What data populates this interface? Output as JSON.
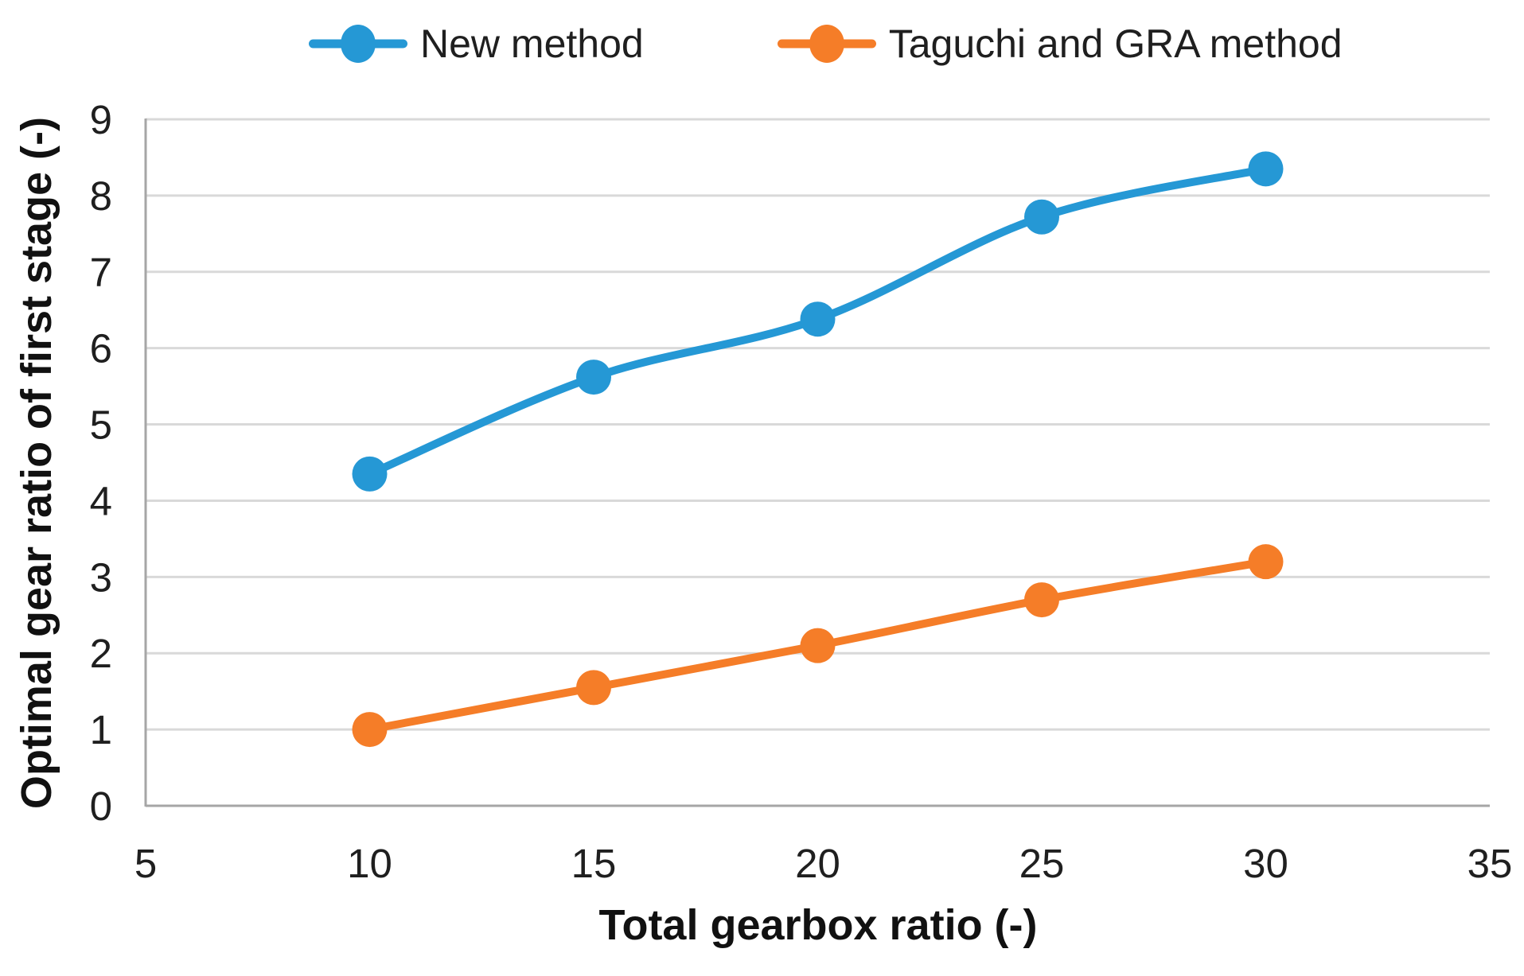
{
  "colors": {
    "series_blue": "#2598d5",
    "series_orange": "#f57d28",
    "gridline": "#d9d9d9",
    "axis_line": "#a6a6a6",
    "text": "#1f1f1f"
  },
  "legend": {
    "position": "top",
    "items": [
      {
        "label": "New method",
        "color": "#2598d5",
        "marker": "line-with-circle"
      },
      {
        "label": "Taguchi and GRA method",
        "color": "#f57d28",
        "marker": "line-with-circle"
      }
    ]
  },
  "chart_data": {
    "type": "line",
    "x": [
      10,
      15,
      20,
      25,
      30
    ],
    "series": [
      {
        "name": "New method",
        "color": "#2598d5",
        "values": [
          4.35,
          5.62,
          6.38,
          7.72,
          8.35
        ]
      },
      {
        "name": "Taguchi and GRA method",
        "color": "#f57d28",
        "values": [
          1.0,
          1.55,
          2.1,
          2.7,
          3.2
        ]
      }
    ],
    "title": "",
    "xlabel": "Total gearbox ratio (-)",
    "ylabel": "Optimal gear ratio of first stage (-)",
    "xlim": [
      5,
      35
    ],
    "ylim": [
      0,
      9
    ],
    "xticks": [
      5,
      10,
      15,
      20,
      25,
      30,
      35
    ],
    "yticks": [
      0,
      1,
      2,
      3,
      4,
      5,
      6,
      7,
      8,
      9
    ],
    "grid": "horizontal",
    "line_style": "smooth",
    "marker": "circle",
    "legend_position": "top"
  }
}
